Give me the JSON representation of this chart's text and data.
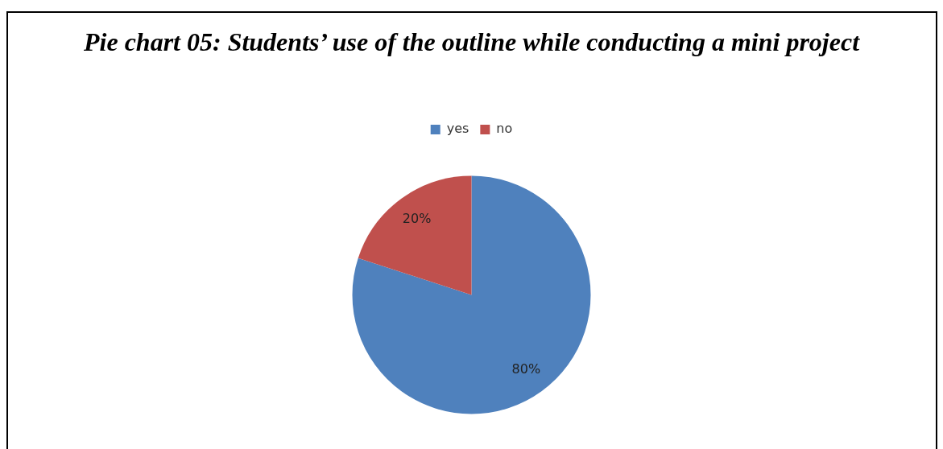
{
  "chart_data": {
    "type": "pie",
    "title": "Pie chart 05: Students’ use of the outline while conducting a mini project",
    "categories": [
      "yes",
      "no"
    ],
    "values": [
      80,
      20
    ],
    "colors": [
      "#4f81bd",
      "#c0504d"
    ],
    "value_labels": [
      "80%",
      "20%"
    ],
    "legend": "top"
  }
}
